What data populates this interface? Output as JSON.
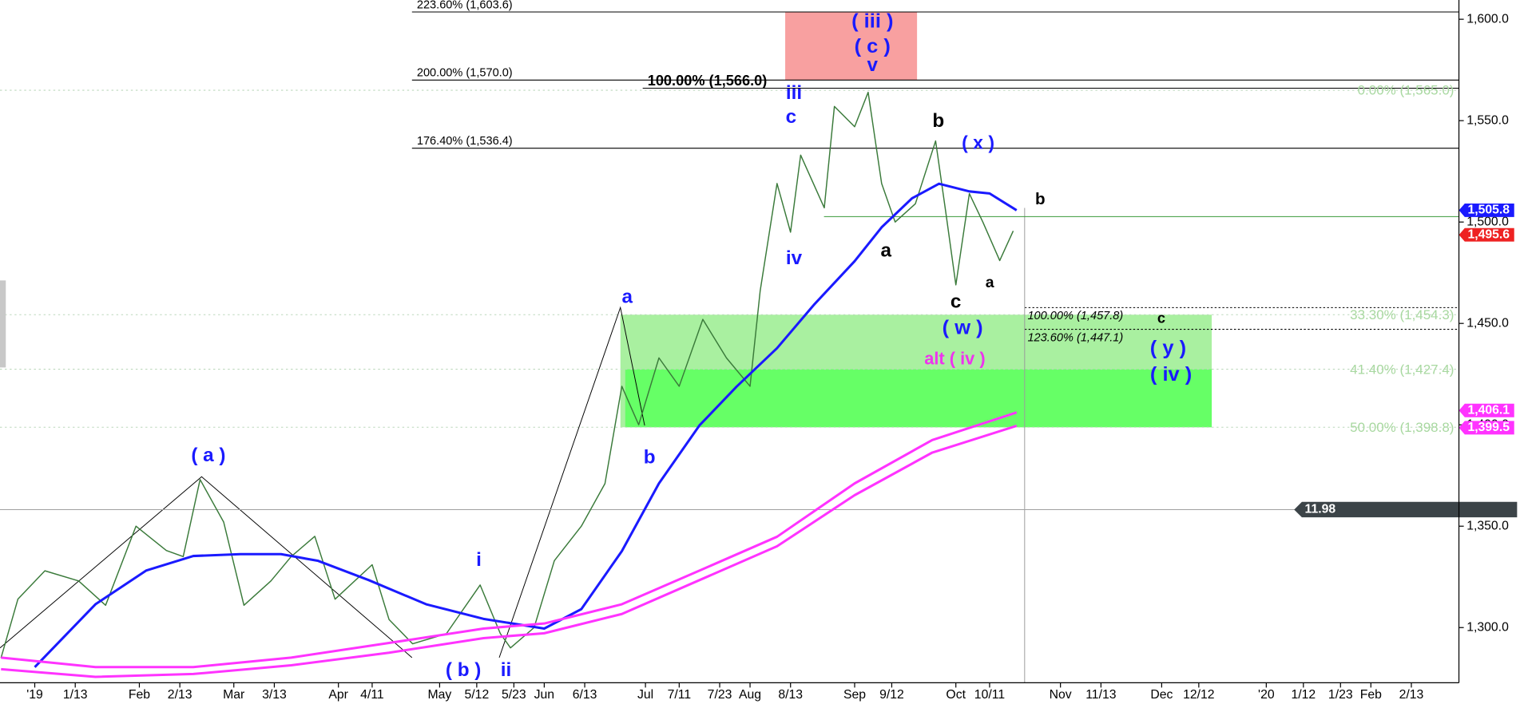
{
  "chart_data": {
    "type": "line",
    "xlim": [
      -10.3,
      422.1
    ],
    "ylim": [
      1272.8,
      1609.5
    ],
    "xticks": [
      {
        "value": 0,
        "label": "'19"
      },
      {
        "value": 12,
        "label": "1/13"
      },
      {
        "value": 31,
        "label": "Feb"
      },
      {
        "value": 43,
        "label": "2/13"
      },
      {
        "value": 59,
        "label": "Mar"
      },
      {
        "value": 71,
        "label": "3/13"
      },
      {
        "value": 90,
        "label": "Apr"
      },
      {
        "value": 100,
        "label": "4/11"
      },
      {
        "value": 120,
        "label": "May"
      },
      {
        "value": 131,
        "label": "5/12"
      },
      {
        "value": 142,
        "label": "5/23"
      },
      {
        "value": 151,
        "label": "Jun"
      },
      {
        "value": 163,
        "label": "6/13"
      },
      {
        "value": 181,
        "label": "Jul"
      },
      {
        "value": 191,
        "label": "7/11"
      },
      {
        "value": 203,
        "label": "7/23"
      },
      {
        "value": 212,
        "label": "Aug"
      },
      {
        "value": 224,
        "label": "8/13"
      },
      {
        "value": 243,
        "label": "Sep"
      },
      {
        "value": 254,
        "label": "9/12"
      },
      {
        "value": 273,
        "label": "Oct"
      },
      {
        "value": 283,
        "label": "10/11"
      },
      {
        "value": 304,
        "label": "Nov"
      },
      {
        "value": 316,
        "label": "11/13"
      },
      {
        "value": 334,
        "label": "Dec"
      },
      {
        "value": 345,
        "label": "12/12"
      },
      {
        "value": 365,
        "label": "'20"
      },
      {
        "value": 376,
        "label": "1/12"
      },
      {
        "value": 387,
        "label": "1/23"
      },
      {
        "value": 396,
        "label": "Feb"
      },
      {
        "value": 408,
        "label": "2/13"
      }
    ],
    "yticks": [
      {
        "value": 1300,
        "label": "1,300.0"
      },
      {
        "value": 1350,
        "label": "1,350.0"
      },
      {
        "value": 1400,
        "label": "1,400.0"
      },
      {
        "value": 1450,
        "label": "1,450.0"
      },
      {
        "value": 1500,
        "label": "1,500.0"
      },
      {
        "value": 1550,
        "label": "1,550.0"
      },
      {
        "value": 1600,
        "label": "1,600.0"
      }
    ],
    "series": [
      {
        "color": "#3a7a3a",
        "x": [
          -10,
          -5,
          3,
          13,
          21,
          30,
          39,
          44,
          49,
          56,
          62,
          70,
          76,
          83,
          89,
          100,
          105,
          112,
          122,
          132,
          138,
          141,
          148,
          154,
          162,
          169,
          174,
          179,
          185,
          191,
          198,
          205,
          212,
          215,
          220,
          224,
          227,
          234,
          237,
          243,
          247,
          251,
          255,
          261,
          267,
          270,
          273,
          277,
          281,
          286,
          290
        ],
        "values": [
          1285,
          1314,
          1328,
          1323,
          1311,
          1350,
          1338,
          1335,
          1373,
          1352,
          1311,
          1323,
          1335,
          1345,
          1314,
          1331,
          1304,
          1292,
          1297,
          1321,
          1297,
          1290,
          1300,
          1333,
          1350,
          1371,
          1419,
          1400,
          1433,
          1419,
          1452,
          1433,
          1419,
          1466,
          1519,
          1495,
          1533,
          1507,
          1557,
          1547,
          1564,
          1519,
          1500,
          1509,
          1540,
          1505,
          1469,
          1514,
          1500,
          1481,
          1495.6
        ]
      },
      {
        "color": "#1a1aff",
        "x": [
          0,
          18,
          33,
          47,
          61,
          73,
          84,
          99,
          116,
          133,
          151,
          162,
          174,
          185,
          197,
          208,
          220,
          231,
          243,
          251,
          260,
          268,
          277,
          283,
          291
        ],
        "values": [
          1280.5,
          1311.5,
          1328.1,
          1335.3,
          1336.2,
          1336.2,
          1332.9,
          1323.4,
          1311.5,
          1304.3,
          1299.5,
          1309.1,
          1337.7,
          1371.1,
          1399.7,
          1418.8,
          1437.8,
          1459.3,
          1480.7,
          1497.4,
          1511.7,
          1518.9,
          1515.1,
          1514.1,
          1505.8
        ]
      },
      {
        "color": "#ff33ff",
        "x": [
          -10,
          18,
          47,
          76,
          105,
          133,
          151,
          174,
          197,
          220,
          243,
          266,
          291
        ],
        "values": [
          1285.2,
          1280.5,
          1280.5,
          1285.2,
          1292.4,
          1299.5,
          1302.0,
          1311.5,
          1328.1,
          1344.8,
          1371.1,
          1392.5,
          1406.1
        ]
      },
      {
        "color": "#ff33ff",
        "x": [
          -10,
          18,
          47,
          76,
          105,
          133,
          151,
          174,
          197,
          220,
          243,
          266,
          291
        ],
        "values": [
          1279.5,
          1275.7,
          1277.1,
          1281.4,
          1287.6,
          1294.8,
          1297.2,
          1306.7,
          1323.4,
          1340.1,
          1365.3,
          1386.3,
          1399.5
        ]
      }
    ],
    "levels": [
      {
        "label": "223.60% (1,603.6)",
        "value": 1603.6,
        "color": "#000000"
      },
      {
        "label": "200.00% (1,570.0)",
        "value": 1570.0,
        "color": "#000000"
      },
      {
        "label": "176.40% (1,536.4)",
        "value": 1536.4,
        "color": "#000000"
      },
      {
        "label": "100.00% (1,566.0)",
        "value": 1566.0,
        "color": "#000000"
      },
      {
        "label": "0.00% (1,565.0)",
        "value": 1565.0,
        "color": "#a8d8a0"
      },
      {
        "label": "33.30% (1,454.3)",
        "value": 1454.3,
        "color": "#a8d8a0"
      },
      {
        "label": "41.40% (1,427.4)",
        "value": 1427.4,
        "color": "#a8d8a0"
      },
      {
        "label": "50.00% (1,398.8)",
        "value": 1398.8,
        "color": "#a8d8a0"
      },
      {
        "label": "100.00% (1,457.8)",
        "value": 1457.8,
        "color": "#000000"
      },
      {
        "label": "123.60% (1,447.1)",
        "value": 1447.1,
        "color": "#000000"
      }
    ],
    "price_tags": [
      {
        "label": "1,505.8",
        "value": 1505.8,
        "color": "#1a1aff"
      },
      {
        "label": "1,495.6",
        "value": 1495.6,
        "color": "#ee2222"
      },
      {
        "label": "1,406.1",
        "value": 1406.1,
        "color": "#ff33ff"
      },
      {
        "label": "1,399.5",
        "value": 1399.5,
        "color": "#ff33ff"
      }
    ],
    "indicator": {
      "label": "11.98",
      "color": "#3c4448"
    },
    "annotations": [
      {
        "text": "( a )",
        "color": "#1a1aff"
      },
      {
        "text": "( b )",
        "color": "#1a1aff"
      },
      {
        "text": "i",
        "color": "#1a1aff"
      },
      {
        "text": "ii",
        "color": "#1a1aff"
      },
      {
        "text": "a",
        "color": "#1a1aff"
      },
      {
        "text": "b",
        "color": "#1a1aff"
      },
      {
        "text": "iv",
        "color": "#1a1aff"
      },
      {
        "text": "iii",
        "color": "#1a1aff"
      },
      {
        "text": "c",
        "color": "#1a1aff"
      },
      {
        "text": "( iii )",
        "color": "#1a1aff"
      },
      {
        "text": "( c )",
        "color": "#1a1aff"
      },
      {
        "text": "v",
        "color": "#1a1aff"
      },
      {
        "text": "a",
        "color": "#000000"
      },
      {
        "text": "b",
        "color": "#000000"
      },
      {
        "text": "( x )",
        "color": "#1a1aff"
      },
      {
        "text": "b",
        "color": "#000000"
      },
      {
        "text": "c",
        "color": "#000000"
      },
      {
        "text": "a",
        "color": "#000000"
      },
      {
        "text": "( w )",
        "color": "#1a1aff"
      },
      {
        "text": "alt ( iv )",
        "color": "#ee33ee"
      },
      {
        "text": "c",
        "color": "#000000"
      },
      {
        "text": "( y )",
        "color": "#1a1aff"
      },
      {
        "text": "( iv )",
        "color": "#1a1aff"
      }
    ]
  }
}
